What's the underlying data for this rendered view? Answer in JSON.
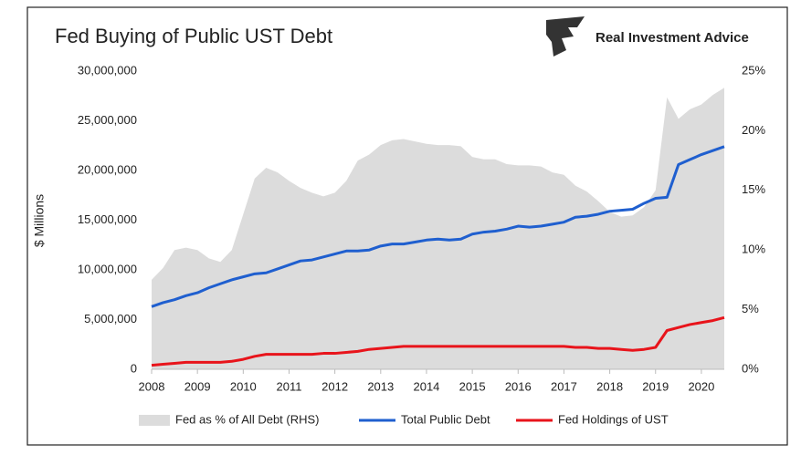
{
  "chart_data": {
    "type": "line",
    "title": "Fed Buying of Public UST Debt",
    "brand": "Real Investment Advice",
    "y_label": "$ Millions",
    "x": [
      2008,
      2008.25,
      2008.5,
      2008.75,
      2009,
      2009.25,
      2009.5,
      2009.75,
      2010,
      2010.25,
      2010.5,
      2010.75,
      2011,
      2011.25,
      2011.5,
      2011.75,
      2012,
      2012.25,
      2012.5,
      2012.75,
      2013,
      2013.25,
      2013.5,
      2013.75,
      2014,
      2014.25,
      2014.5,
      2014.75,
      2015,
      2015.25,
      2015.5,
      2015.75,
      2016,
      2016.25,
      2016.5,
      2016.75,
      2017,
      2017.25,
      2017.5,
      2017.75,
      2018,
      2018.25,
      2018.5,
      2018.75,
      2019,
      2019.25,
      2019.5,
      2019.75,
      2020,
      2020.25,
      2020.5
    ],
    "series": [
      {
        "name": "Fed as % of All Debt (RHS)",
        "kind": "area",
        "axis": "y2",
        "color": "#dcdcdc",
        "values": [
          7.5,
          8.5,
          10,
          10.2,
          10,
          9.3,
          9,
          10,
          13,
          16,
          16.9,
          16.5,
          15.8,
          15.2,
          14.8,
          14.5,
          14.8,
          15.8,
          17.5,
          18,
          18.8,
          19.2,
          19.3,
          19.1,
          18.9,
          18.8,
          18.8,
          18.7,
          17.8,
          17.6,
          17.6,
          17.2,
          17.1,
          17.1,
          17.0,
          16.5,
          16.3,
          15.4,
          14.9,
          14.1,
          13.2,
          12.8,
          12.9,
          13.6,
          15,
          22.8,
          21,
          21.8,
          22.2,
          23,
          23.6
        ]
      },
      {
        "name": "Total Public Debt",
        "kind": "line",
        "color": "#1f5fcf",
        "values": [
          6300000,
          6700000,
          7000000,
          7400000,
          7700000,
          8200000,
          8600000,
          9000000,
          9300000,
          9600000,
          9700000,
          10100000,
          10500000,
          10900000,
          11000000,
          11300000,
          11600000,
          11900000,
          11900000,
          12000000,
          12400000,
          12600000,
          12600000,
          12800000,
          13000000,
          13100000,
          13000000,
          13100000,
          13600000,
          13800000,
          13900000,
          14100000,
          14400000,
          14300000,
          14400000,
          14600000,
          14800000,
          15300000,
          15400000,
          15600000,
          15900000,
          16000000,
          16100000,
          16700000,
          17200000,
          17300000,
          20600000,
          21100000,
          21600000,
          22000000,
          22400000
        ]
      },
      {
        "name": "Fed Holdings of UST",
        "kind": "line",
        "color": "#e8141b",
        "values": [
          400000,
          500000,
          600000,
          700000,
          700000,
          700000,
          700000,
          800000,
          1000000,
          1300000,
          1500000,
          1500000,
          1500000,
          1500000,
          1500000,
          1600000,
          1600000,
          1700000,
          1800000,
          2000000,
          2100000,
          2200000,
          2300000,
          2300000,
          2300000,
          2300000,
          2300000,
          2300000,
          2300000,
          2300000,
          2300000,
          2300000,
          2300000,
          2300000,
          2300000,
          2300000,
          2300000,
          2200000,
          2200000,
          2100000,
          2100000,
          2000000,
          1900000,
          2000000,
          2200000,
          3900000,
          4200000,
          4500000,
          4700000,
          4900000,
          5200000
        ]
      }
    ],
    "xlim": [
      2008,
      2020.5
    ],
    "xticks": [
      2008,
      2009,
      2010,
      2011,
      2012,
      2013,
      2014,
      2015,
      2016,
      2017,
      2018,
      2019,
      2020
    ],
    "ylim": [
      0,
      30000000
    ],
    "yticks": [
      {
        "value": 0,
        "label": "0"
      },
      {
        "value": 5000000,
        "label": "5,000,000"
      },
      {
        "value": 10000000,
        "label": "10,000,000"
      },
      {
        "value": 15000000,
        "label": "15,000,000"
      },
      {
        "value": 20000000,
        "label": "20,000,000"
      },
      {
        "value": 25000000,
        "label": "25,000,000"
      },
      {
        "value": 30000000,
        "label": "30,000,000"
      }
    ],
    "y2lim": [
      0,
      25
    ],
    "y2ticks": [
      {
        "value": 0,
        "label": "0%"
      },
      {
        "value": 5,
        "label": "5%"
      },
      {
        "value": 10,
        "label": "10%"
      },
      {
        "value": 15,
        "label": "15%"
      },
      {
        "value": 20,
        "label": "20%"
      },
      {
        "value": 25,
        "label": "25%"
      }
    ],
    "legend": "bottom"
  }
}
